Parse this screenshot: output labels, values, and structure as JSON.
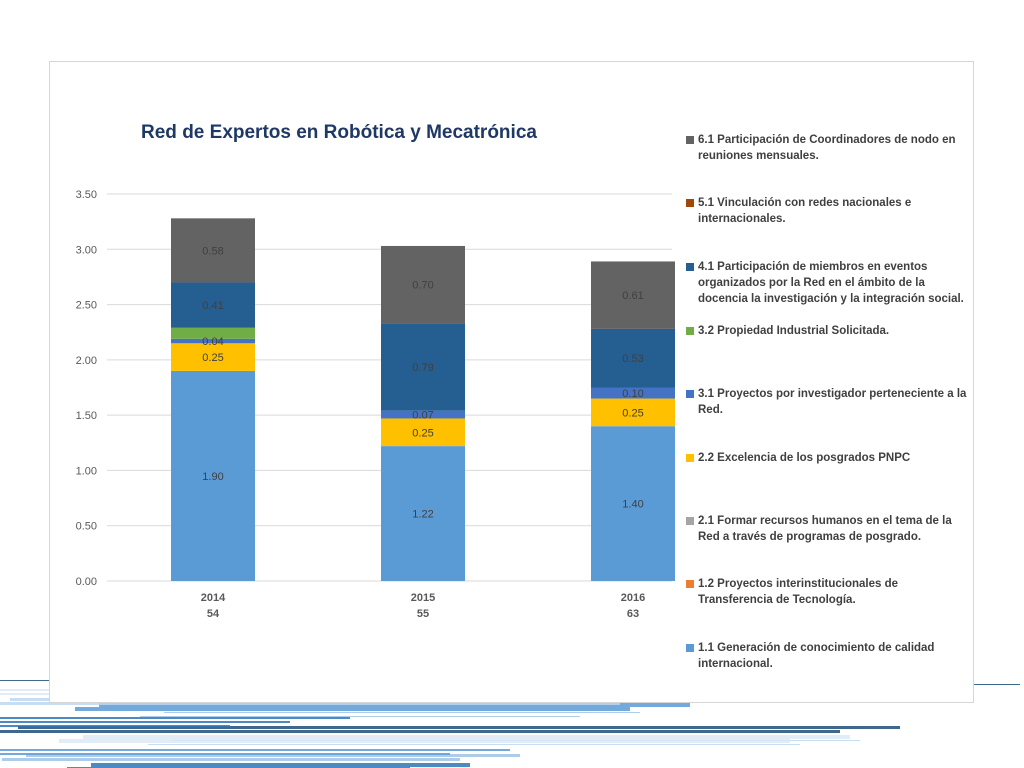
{
  "chart_data": {
    "type": "bar",
    "stacked": true,
    "title": "Red de Expertos en Robótica y Mecatrónica",
    "categories": [
      {
        "year": "2014",
        "count": "54"
      },
      {
        "year": "2015",
        "count": "55"
      },
      {
        "year": "2016",
        "count": "63"
      }
    ],
    "ylim": [
      0,
      3.5
    ],
    "yticks": [
      "0.00",
      "0.50",
      "1.00",
      "1.50",
      "2.00",
      "2.50",
      "3.00",
      "3.50"
    ],
    "grid": true,
    "legend_position": "right",
    "series": [
      {
        "name": "1.1 Generación de conocimiento de calidad internacional.",
        "color": "#5b9bd5",
        "values": [
          1.9,
          1.22,
          1.4
        ],
        "labels": [
          "1.90",
          "1.22",
          "1.40"
        ]
      },
      {
        "name": "1.2 Proyectos interinstitucionales de Transferencia de Tecnología.",
        "color": "#ed7d31",
        "values": [
          0,
          0,
          0
        ],
        "labels": [
          "",
          "",
          ""
        ]
      },
      {
        "name": "2.1 Formar recursos humanos en el tema de la Red a través de programas de posgrado.",
        "color": "#a5a5a5",
        "values": [
          0,
          0,
          0
        ],
        "labels": [
          "",
          "",
          ""
        ]
      },
      {
        "name": "2.2 Excelencia de los posgrados PNPC",
        "color": "#ffc000",
        "values": [
          0.25,
          0.25,
          0.25
        ],
        "labels": [
          "0.25",
          "0.25",
          "0.25"
        ]
      },
      {
        "name": "3.1 Proyectos por investigador perteneciente a la Red.",
        "color": "#4472c4",
        "values": [
          0.04,
          0.07,
          0.1
        ],
        "labels": [
          "0.04",
          "0.07",
          "0.10"
        ]
      },
      {
        "name": "3.2 Propiedad Industrial Solicitada.",
        "color": "#70ad47",
        "values": [
          0.1,
          0,
          0
        ],
        "labels": [
          "",
          "",
          ""
        ]
      },
      {
        "name": "4.1 Participación de miembros en eventos organizados por la Red en el ámbito de la docencia la investigación y la integración social.",
        "color": "#255e91",
        "values": [
          0.41,
          0.79,
          0.53
        ],
        "labels": [
          "0.41",
          "0.79",
          "0.53"
        ]
      },
      {
        "name": "5.1 Vinculación con redes nacionales e internacionales.",
        "color": "#9e480e",
        "values": [
          0,
          0,
          0
        ],
        "labels": [
          "",
          "",
          ""
        ]
      },
      {
        "name": "6.1 Participación de Coordinadores de nodo en reuniones mensuales.",
        "color": "#636363",
        "values": [
          0.58,
          0.7,
          0.61
        ],
        "labels": [
          "0.58",
          "0.70",
          "0.61"
        ]
      }
    ],
    "legend_order": [
      8,
      7,
      6,
      5,
      4,
      3,
      2,
      1,
      0
    ]
  }
}
